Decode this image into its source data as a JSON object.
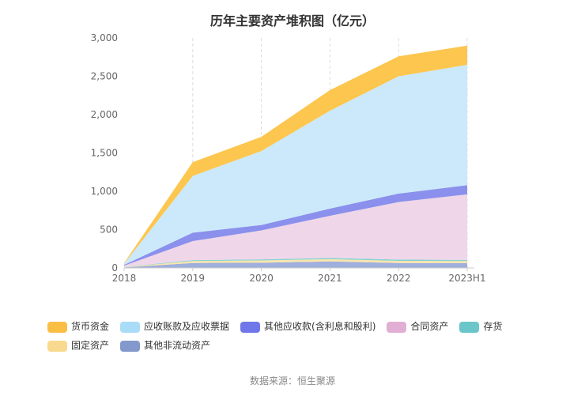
{
  "page": {
    "title": "历年主要资产堆积图（亿元）",
    "footer_source": "数据来源：恒生聚源"
  },
  "chart_data": {
    "type": "area",
    "stacked": true,
    "title": "历年主要资产堆积图（亿元）",
    "unit": "亿元",
    "categories": [
      "2018",
      "2019",
      "2020",
      "2021",
      "2022",
      "2023H1"
    ],
    "ylim": [
      0,
      3000
    ],
    "y_ticks": [
      0,
      500,
      1000,
      1500,
      2000,
      2500,
      3000
    ],
    "y_tick_labels": [
      "0",
      "500",
      "1,000",
      "1,500",
      "2,000",
      "2,500",
      "3,000"
    ],
    "grid": {
      "vertical_dashed": true,
      "horizontal": false
    },
    "legend_position": "bottom",
    "stack_order": "last-series-at-bottom",
    "axis_color": "#cccccc",
    "gridline_color": "#dddddd",
    "series": [
      {
        "name": "货币资金",
        "color": "#FBBE45",
        "fill": "#FCC64F",
        "values": [
          10,
          180,
          185,
          270,
          260,
          250
        ]
      },
      {
        "name": "应收账款及应收票据",
        "color": "#A9DCF7",
        "fill": "#CBE9FA",
        "values": [
          15,
          740,
          965,
          1275,
          1530,
          1570
        ]
      },
      {
        "name": "其他应收款(含利息和股利)",
        "color": "#7077E8",
        "fill": "#8A90EC",
        "values": [
          10,
          110,
          70,
          95,
          110,
          120
        ]
      },
      {
        "name": "合同资产",
        "color": "#E2AFD4",
        "fill": "#EFD6E8",
        "values": [
          15,
          248,
          378,
          550,
          750,
          855
        ]
      },
      {
        "name": "存货",
        "color": "#6AC6C9",
        "fill": "#85D2D4",
        "values": [
          2,
          12,
          14,
          15,
          17,
          15
        ]
      },
      {
        "name": "固定资产",
        "color": "#F8D98F",
        "fill": "#FAE5AC",
        "values": [
          5,
          25,
          30,
          30,
          28,
          28
        ]
      },
      {
        "name": "其他非流动资产",
        "color": "#8399CC",
        "fill": "#9FAEDC",
        "values": [
          8,
          65,
          68,
          85,
          65,
          62
        ]
      }
    ]
  }
}
